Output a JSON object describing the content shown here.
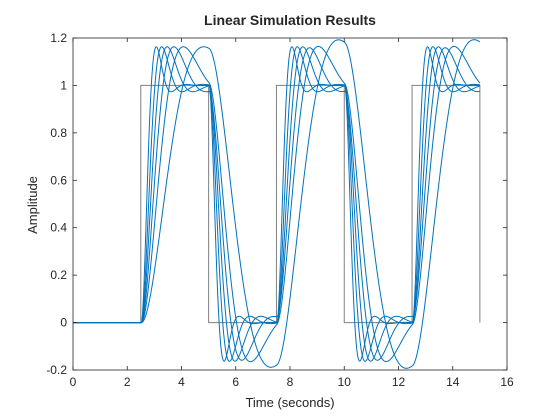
{
  "chart_data": {
    "type": "line",
    "title": "Linear Simulation Results",
    "xlabel": "Time (seconds)",
    "ylabel": "Amplitude",
    "xlim": [
      0,
      16
    ],
    "ylim": [
      -0.2,
      1.2
    ],
    "xticks": [
      0,
      2,
      4,
      6,
      8,
      10,
      12,
      14,
      16
    ],
    "yticks": [
      -0.2,
      0,
      0.2,
      0.4,
      0.6,
      0.8,
      1,
      1.2
    ],
    "xtick_labels": [
      "0",
      "2",
      "4",
      "6",
      "8",
      "10",
      "12",
      "14",
      "16"
    ],
    "ytick_labels": [
      "-0.2",
      "0",
      "0.2",
      "0.4",
      "0.6",
      "0.8",
      "1",
      "1.2"
    ],
    "grid": false,
    "colors": {
      "input": "#808080",
      "response": "#0072BD",
      "axes": "#262626"
    },
    "input_signal": {
      "x": [
        0,
        2.5,
        2.5,
        5,
        5,
        7.5,
        7.5,
        10,
        10,
        12.5,
        12.5,
        15,
        15
      ],
      "y": [
        0,
        0,
        1,
        1,
        0,
        0,
        1,
        1,
        0,
        0,
        1,
        1,
        0
      ]
    },
    "response_family": {
      "description_values": "approximate overshoot peaks per response",
      "series": [
        {
          "peak_time_after_step": 0.55,
          "peak": 1.16
        },
        {
          "peak_time_after_step": 0.75,
          "peak": 1.16
        },
        {
          "peak_time_after_step": 0.95,
          "peak": 1.16
        },
        {
          "peak_time_after_step": 1.2,
          "peak": 1.16
        },
        {
          "peak_time_after_step": 1.55,
          "peak": 1.16
        },
        {
          "peak_time_after_step": 2.3,
          "peak": 1.2
        }
      ]
    }
  }
}
